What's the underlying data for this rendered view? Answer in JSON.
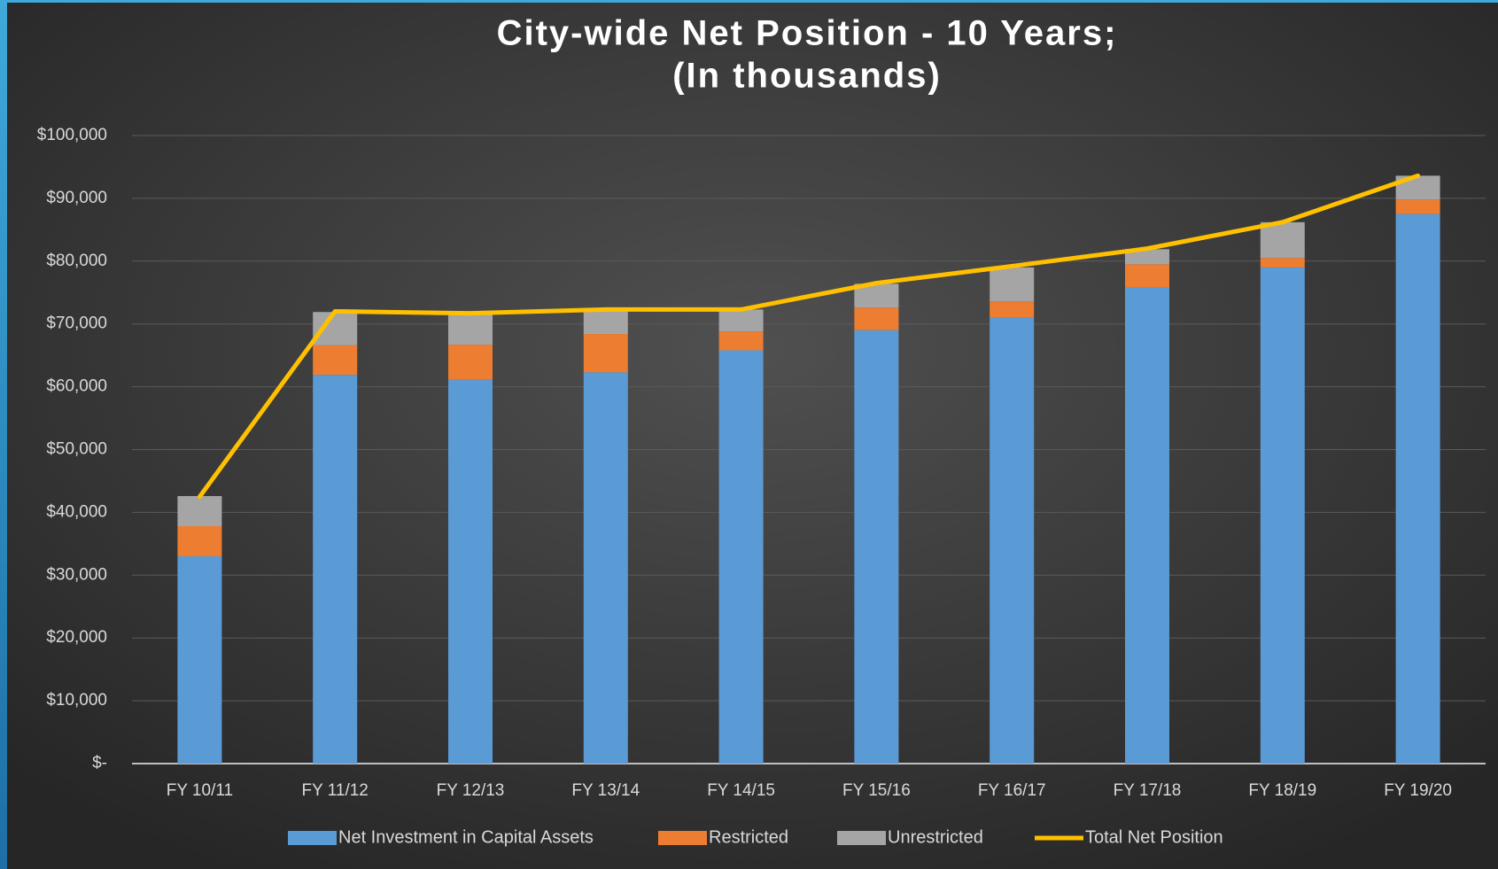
{
  "chart_data": {
    "type": "stacked-bar-line",
    "title": [
      "City-wide Net Position - 10 Years;",
      "(In thousands)"
    ],
    "categories": [
      "FY 10/11",
      "FY 11/12",
      "FY 12/13",
      "FY 13/14",
      "FY 14/15",
      "FY 15/16",
      "FY 16/17",
      "FY 17/18",
      "FY 18/19",
      "FY 19/20"
    ],
    "series": [
      {
        "name": "Net Investment in Capital Assets",
        "color": "#5b9bd5",
        "kind": "bar",
        "values": [
          33000,
          61900,
          61100,
          62300,
          65800,
          69000,
          71000,
          75800,
          79000,
          87500
        ]
      },
      {
        "name": "Restricted",
        "color": "#ed7d31",
        "kind": "bar",
        "values": [
          4800,
          4700,
          5600,
          6100,
          3000,
          3600,
          2600,
          3700,
          1500,
          2300
        ]
      },
      {
        "name": "Unrestricted",
        "color": "#a5a5a5",
        "kind": "bar",
        "values": [
          4800,
          5300,
          4900,
          3900,
          3500,
          3800,
          5400,
          2400,
          5700,
          3800
        ]
      },
      {
        "name": "Total Net Position",
        "color": "#ffc000",
        "kind": "line",
        "values": [
          42500,
          72000,
          71700,
          72300,
          72300,
          76500,
          79200,
          82000,
          86200,
          93600
        ]
      }
    ],
    "ylim": [
      0,
      100000
    ],
    "yticks": [
      {
        "value": 0,
        "label": "$-"
      },
      {
        "value": 10000,
        "label": "$10,000"
      },
      {
        "value": 20000,
        "label": "$20,000"
      },
      {
        "value": 30000,
        "label": "$30,000"
      },
      {
        "value": 40000,
        "label": "$40,000"
      },
      {
        "value": 50000,
        "label": "$50,000"
      },
      {
        "value": 60000,
        "label": "$60,000"
      },
      {
        "value": 70000,
        "label": "$70,000"
      },
      {
        "value": 80000,
        "label": "$80,000"
      },
      {
        "value": 90000,
        "label": "$90,000"
      },
      {
        "value": 100000,
        "label": "$100,000"
      }
    ],
    "grid": true,
    "legend": "bottom"
  }
}
